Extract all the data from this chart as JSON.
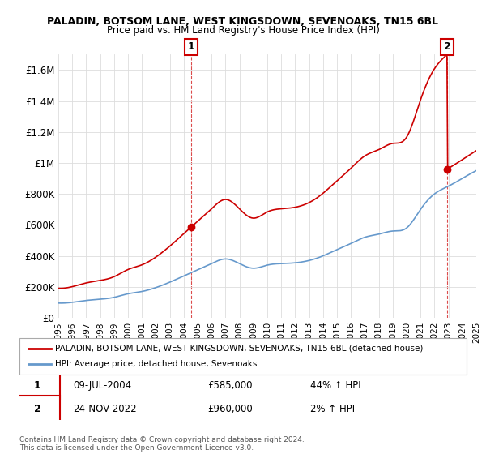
{
  "title1": "PALADIN, BOTSOM LANE, WEST KINGSDOWN, SEVENOAKS, TN15 6BL",
  "title2": "Price paid vs. HM Land Registry's House Price Index (HPI)",
  "legend_line1": "PALADIN, BOTSOM LANE, WEST KINGSDOWN, SEVENOAKS, TN15 6BL (detached house)",
  "legend_line2": "HPI: Average price, detached house, Sevenoaks",
  "annotation1_label": "1",
  "annotation1_date": "09-JUL-2004",
  "annotation1_price": "£585,000",
  "annotation1_hpi": "44% ↑ HPI",
  "annotation2_label": "2",
  "annotation2_date": "24-NOV-2022",
  "annotation2_price": "£960,000",
  "annotation2_hpi": "2% ↑ HPI",
  "copyright": "Contains HM Land Registry data © Crown copyright and database right 2024.\nThis data is licensed under the Open Government Licence v3.0.",
  "red_color": "#cc0000",
  "blue_color": "#6699cc",
  "dashed_color": "#cc0000",
  "yticks": [
    0,
    200000,
    400000,
    600000,
    800000,
    1000000,
    1200000,
    1400000,
    1600000
  ],
  "ylabels": [
    "£0",
    "£200K",
    "£400K",
    "£600K",
    "£800K",
    "£1M",
    "£1.2M",
    "£1.4M",
    "£1.6M"
  ],
  "ymax": 1700000,
  "hpi_years": [
    1995,
    1996,
    1997,
    1998,
    1999,
    2000,
    2001,
    2002,
    2003,
    2004,
    2005,
    2006,
    2007,
    2008,
    2009,
    2010,
    2011,
    2012,
    2013,
    2014,
    2015,
    2016,
    2017,
    2018,
    2019,
    2020,
    2021,
    2022,
    2023,
    2024,
    2025
  ],
  "hpi_values": [
    95000,
    100000,
    112000,
    120000,
    132000,
    155000,
    170000,
    195000,
    230000,
    270000,
    310000,
    350000,
    380000,
    350000,
    320000,
    340000,
    350000,
    355000,
    370000,
    400000,
    440000,
    480000,
    520000,
    540000,
    560000,
    580000,
    700000,
    800000,
    850000,
    900000,
    950000
  ],
  "sale1_x": 2004.52,
  "sale1_y": 585000,
  "sale2_x": 2022.9,
  "sale2_y": 960000,
  "xmin": 1995,
  "xmax": 2025
}
